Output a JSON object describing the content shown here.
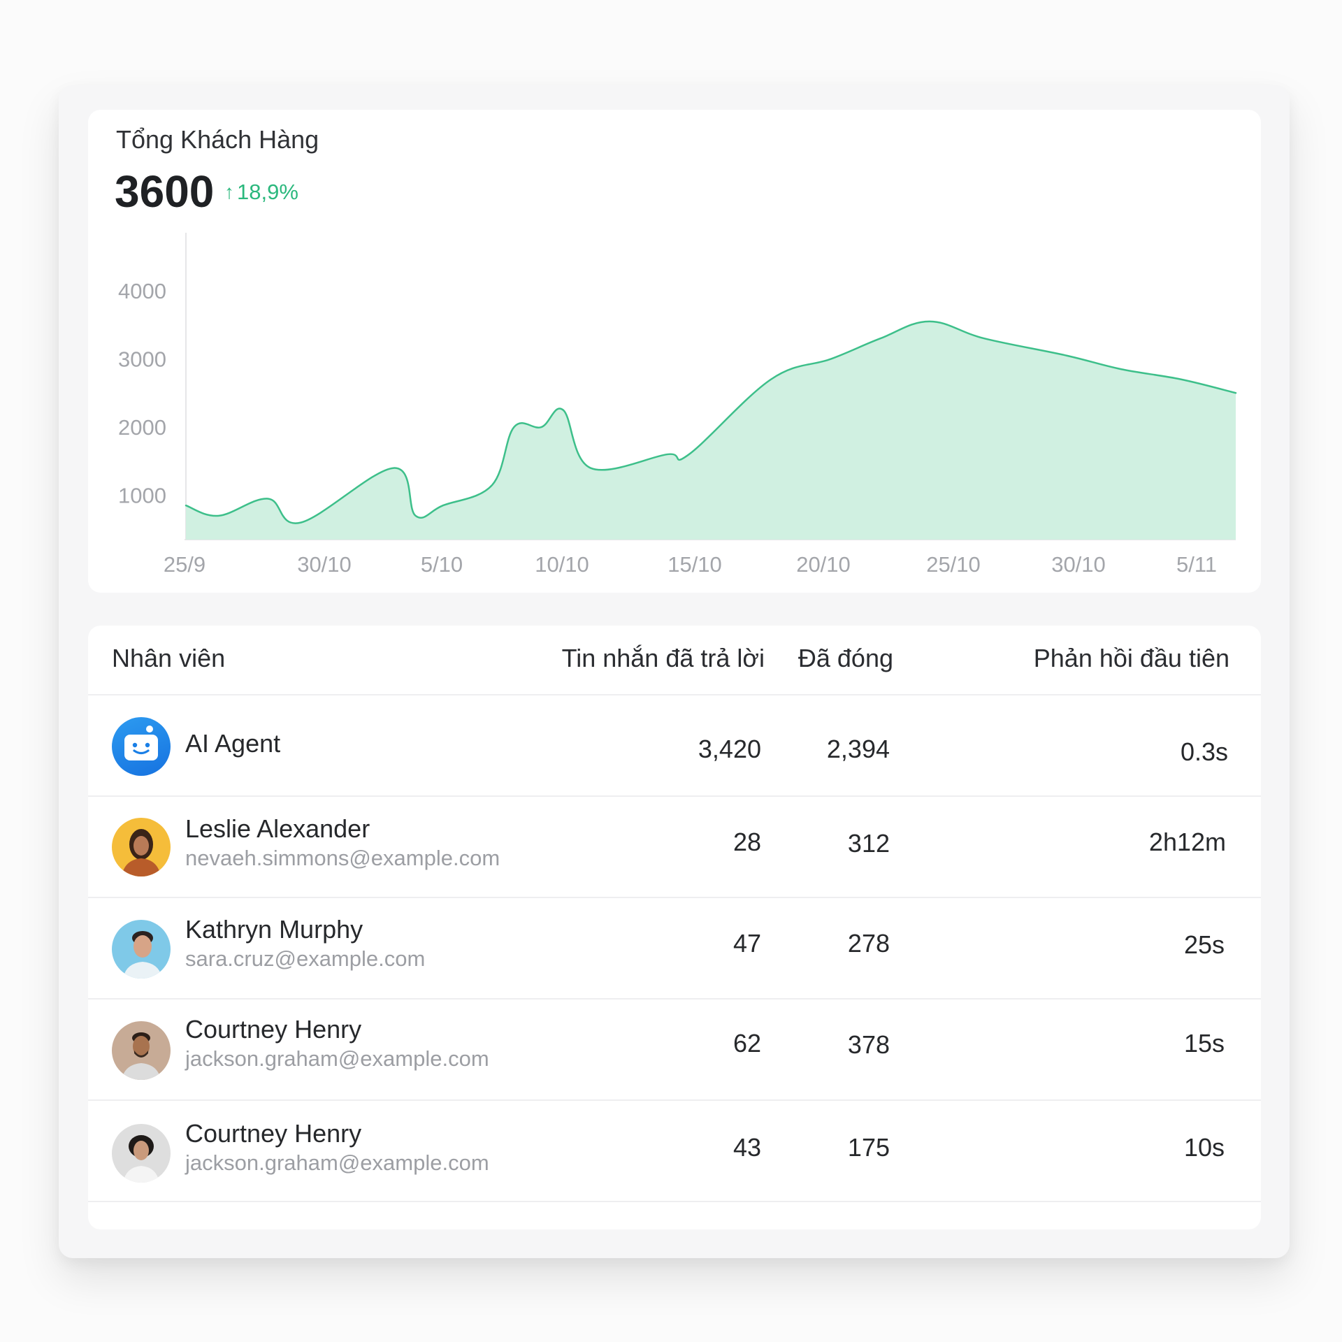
{
  "card": {
    "title": "Tổng Khách Hàng",
    "value": "3600",
    "growth": "18,9%",
    "growth_color": "#2bb87d"
  },
  "chart_data": {
    "type": "area",
    "y_ticks": [
      "1000",
      "2000",
      "3000",
      "4000"
    ],
    "x_ticks": [
      "25/9",
      "30/10",
      "5/10",
      "10/10",
      "15/10",
      "20/10",
      "25/10",
      "30/10",
      "5/11"
    ],
    "ylim": [
      350,
      4850
    ],
    "line_color": "#3dbf8a",
    "fill_color": "#d0f0e1",
    "points": [
      [
        0.0,
        850
      ],
      [
        0.6,
        700
      ],
      [
        1.5,
        950
      ],
      [
        2.1,
        600
      ],
      [
        3.8,
        1400
      ],
      [
        4.2,
        700
      ],
      [
        4.7,
        850
      ],
      [
        5.6,
        1150
      ],
      [
        6.0,
        2000
      ],
      [
        6.5,
        2000
      ],
      [
        6.9,
        2250
      ],
      [
        7.4,
        1400
      ],
      [
        8.8,
        1600
      ],
      [
        9.2,
        1600
      ],
      [
        10.7,
        2700
      ],
      [
        11.8,
        3000
      ],
      [
        12.7,
        3300
      ],
      [
        13.6,
        3550
      ],
      [
        14.6,
        3300
      ],
      [
        16.1,
        3050
      ],
      [
        17.1,
        2850
      ],
      [
        18.2,
        2700
      ],
      [
        19.2,
        2500
      ]
    ]
  },
  "table": {
    "headers": [
      "Nhân viên",
      "Tin nhắn đã trả lời",
      "Đã đóng",
      "Phản hồi đầu tiên"
    ],
    "rows": [
      {
        "name": "AI Agent",
        "email": "",
        "answered": "3,420",
        "closed": "2,394",
        "first_response": "0.3s"
      },
      {
        "name": "Leslie Alexander",
        "email": "nevaeh.simmons@example.com",
        "answered": "28",
        "closed": "312",
        "first_response": "2h12m"
      },
      {
        "name": "Kathryn Murphy",
        "email": "sara.cruz@example.com",
        "answered": "47",
        "closed": "278",
        "first_response": "25s"
      },
      {
        "name": "Courtney Henry",
        "email": "jackson.graham@example.com",
        "answered": "62",
        "closed": "378",
        "first_response": "15s"
      },
      {
        "name": "Courtney Henry",
        "email": "jackson.graham@example.com",
        "answered": "43",
        "closed": "175",
        "first_response": "10s"
      }
    ]
  }
}
